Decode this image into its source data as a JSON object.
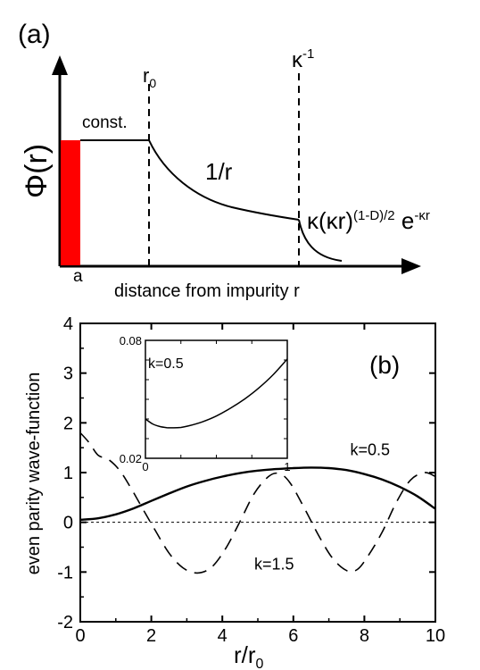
{
  "chart_data": [
    {
      "type": "diagram",
      "panel_label": "(a)",
      "ylabel_symbol": "Φ",
      "ylabel_paren": "(r)",
      "xlabel": "distance from impurity r",
      "marker_a": "a",
      "marker_r0": "r",
      "marker_r0_sub": "0",
      "marker_kappa": "κ",
      "marker_kappa_sup": "-1",
      "region_labels": {
        "const": "const.",
        "inverse": "1/r",
        "far_pre": "κ(κr)",
        "far_exp1": "(1-D)/2",
        "far_mid": " e",
        "far_exp2": "-κr"
      },
      "colors": {
        "impurity_bar": "#ff0000"
      }
    },
    {
      "type": "line",
      "panel_label": "(b)",
      "xlabel_main": "r/r",
      "xlabel_sub": "0",
      "ylabel": "even parity wave-function",
      "xlim": [
        0,
        10
      ],
      "ylim": [
        -2,
        4
      ],
      "x_ticks": [
        "0",
        "2",
        "4",
        "6",
        "8",
        "10"
      ],
      "y_ticks": [
        "-2",
        "-1",
        "0",
        "1",
        "2",
        "3",
        "4"
      ],
      "series": [
        {
          "name": "k=0.5",
          "style": "solid",
          "points": [
            [
              0,
              0.05
            ],
            [
              0.5,
              0.08
            ],
            [
              1,
              0.16
            ],
            [
              1.5,
              0.28
            ],
            [
              2,
              0.43
            ],
            [
              2.5,
              0.58
            ],
            [
              3,
              0.72
            ],
            [
              3.5,
              0.83
            ],
            [
              4,
              0.92
            ],
            [
              4.5,
              0.99
            ],
            [
              5,
              1.04
            ],
            [
              5.5,
              1.07
            ],
            [
              6,
              1.09
            ],
            [
              6.5,
              1.1
            ],
            [
              7,
              1.09
            ],
            [
              7.5,
              1.05
            ],
            [
              8,
              0.97
            ],
            [
              8.5,
              0.86
            ],
            [
              9,
              0.71
            ],
            [
              9.5,
              0.52
            ],
            [
              10,
              0.27
            ]
          ]
        },
        {
          "name": "k=1.5",
          "style": "dashed",
          "points": [
            [
              0,
              1.8
            ],
            [
              0.25,
              1.6
            ],
            [
              0.5,
              1.35
            ],
            [
              0.8,
              1.26
            ],
            [
              1.1,
              1.05
            ],
            [
              1.4,
              0.72
            ],
            [
              1.8,
              0.22
            ],
            [
              2.1,
              -0.15
            ],
            [
              2.5,
              -0.62
            ],
            [
              2.9,
              -0.92
            ],
            [
              3.3,
              -1.02
            ],
            [
              3.7,
              -0.9
            ],
            [
              4.1,
              -0.52
            ],
            [
              4.5,
              0.02
            ],
            [
              4.9,
              0.58
            ],
            [
              5.3,
              0.92
            ],
            [
              5.6,
              0.98
            ],
            [
              5.9,
              0.8
            ],
            [
              6.3,
              0.3
            ],
            [
              6.7,
              -0.25
            ],
            [
              7.1,
              -0.72
            ],
            [
              7.5,
              -0.97
            ],
            [
              7.8,
              -0.95
            ],
            [
              8.1,
              -0.68
            ],
            [
              8.5,
              -0.2
            ],
            [
              8.9,
              0.4
            ],
            [
              9.3,
              0.85
            ],
            [
              9.7,
              1.0
            ],
            [
              10,
              0.92
            ]
          ]
        }
      ],
      "annotations": [
        {
          "text": "k=0.5",
          "x": 7.6,
          "y": 1.35
        },
        {
          "text": "k=1.5",
          "x": 4.9,
          "y": -0.95
        }
      ],
      "inset": {
        "type": "line",
        "xlim": [
          0,
          1
        ],
        "ylim": [
          0.02,
          0.08
        ],
        "x_ticks": [
          "0",
          "1"
        ],
        "y_ticks": [
          "0.02",
          "0.08"
        ],
        "label": "k=0.5",
        "points": [
          [
            0,
            0.04
          ],
          [
            0.05,
            0.0375
          ],
          [
            0.1,
            0.0362
          ],
          [
            0.15,
            0.0356
          ],
          [
            0.2,
            0.0355
          ],
          [
            0.25,
            0.0357
          ],
          [
            0.3,
            0.0364
          ],
          [
            0.4,
            0.0385
          ],
          [
            0.5,
            0.0415
          ],
          [
            0.6,
            0.0455
          ],
          [
            0.7,
            0.0502
          ],
          [
            0.8,
            0.0558
          ],
          [
            0.9,
            0.0625
          ],
          [
            1.0,
            0.0705
          ]
        ]
      }
    }
  ]
}
